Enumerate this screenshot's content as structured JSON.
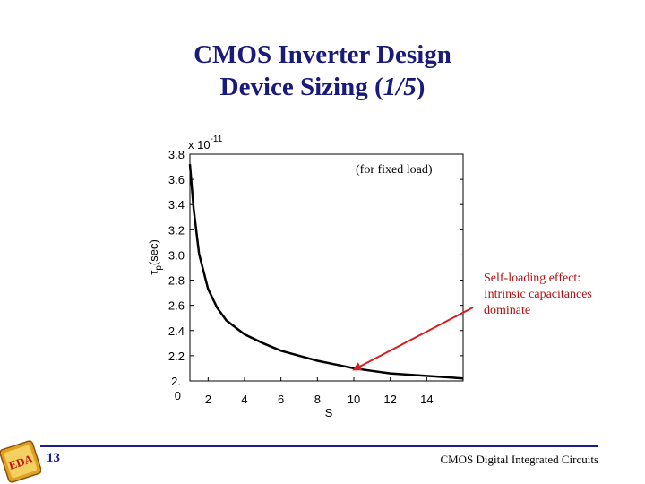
{
  "slide": {
    "title_line1": "CMOS Inverter Design",
    "title_line2_prefix": "Device Sizing (",
    "title_line2_fraction": "1/5",
    "title_line2_suffix": ")",
    "annotation": "Self-loading effect:\nIntrinsic capacitances\ndominate",
    "page_number": "13",
    "footer": "CMOS Digital Integrated Circuits",
    "logo_text": "EDA",
    "colors": {
      "title": "#1a1a7a",
      "annotation": "#b01010",
      "arrow": "#d42020",
      "footer_bar": "#1c1c8a"
    }
  },
  "chart_data": {
    "type": "line",
    "ylabel_symbol": "τ",
    "ylabel_subscript": "p",
    "ylabel_unit": "(sec)",
    "xlabel": "S",
    "y_multiplier": "x 10",
    "y_exponent": "-11",
    "note": "(for fixed load)",
    "xlim": [
      1,
      16
    ],
    "ylim": [
      2.0,
      3.8
    ],
    "x_ticks": [
      {
        "v": 2,
        "label": "2"
      },
      {
        "v": 4,
        "label": "4"
      },
      {
        "v": 6,
        "label": "6"
      },
      {
        "v": 8,
        "label": "8"
      },
      {
        "v": 10,
        "label": "10"
      },
      {
        "v": 12,
        "label": "12"
      },
      {
        "v": 14,
        "label": "14"
      }
    ],
    "y_ticks": [
      {
        "v": 3.8,
        "label": "3.8"
      },
      {
        "v": 3.6,
        "label": "3.6"
      },
      {
        "v": 3.4,
        "label": "3.4"
      },
      {
        "v": 3.2,
        "label": "3.2"
      },
      {
        "v": 3.0,
        "label": "3.0"
      },
      {
        "v": 2.8,
        "label": "2.8"
      },
      {
        "v": 2.6,
        "label": "2.6"
      },
      {
        "v": 2.4,
        "label": "2.4"
      },
      {
        "v": 2.2,
        "label": "2.2"
      },
      {
        "v": 2.0,
        "label": "2.\n0"
      }
    ],
    "series": [
      {
        "x": [
          1.0,
          1.2,
          1.5,
          2.0,
          2.5,
          3.0,
          4.0,
          5.0,
          6.0,
          7.0,
          8.0,
          9.0,
          10.0,
          11.0,
          12.0,
          13.0,
          14.0,
          15.0,
          16.0
        ],
        "y": [
          3.72,
          3.37,
          3.01,
          2.73,
          2.58,
          2.48,
          2.37,
          2.3,
          2.24,
          2.2,
          2.16,
          2.13,
          2.1,
          2.08,
          2.06,
          2.05,
          2.04,
          2.03,
          2.02
        ],
        "color": "#000000"
      }
    ],
    "annotation_arrow_target": {
      "x": 10.0,
      "y": 2.09
    }
  }
}
